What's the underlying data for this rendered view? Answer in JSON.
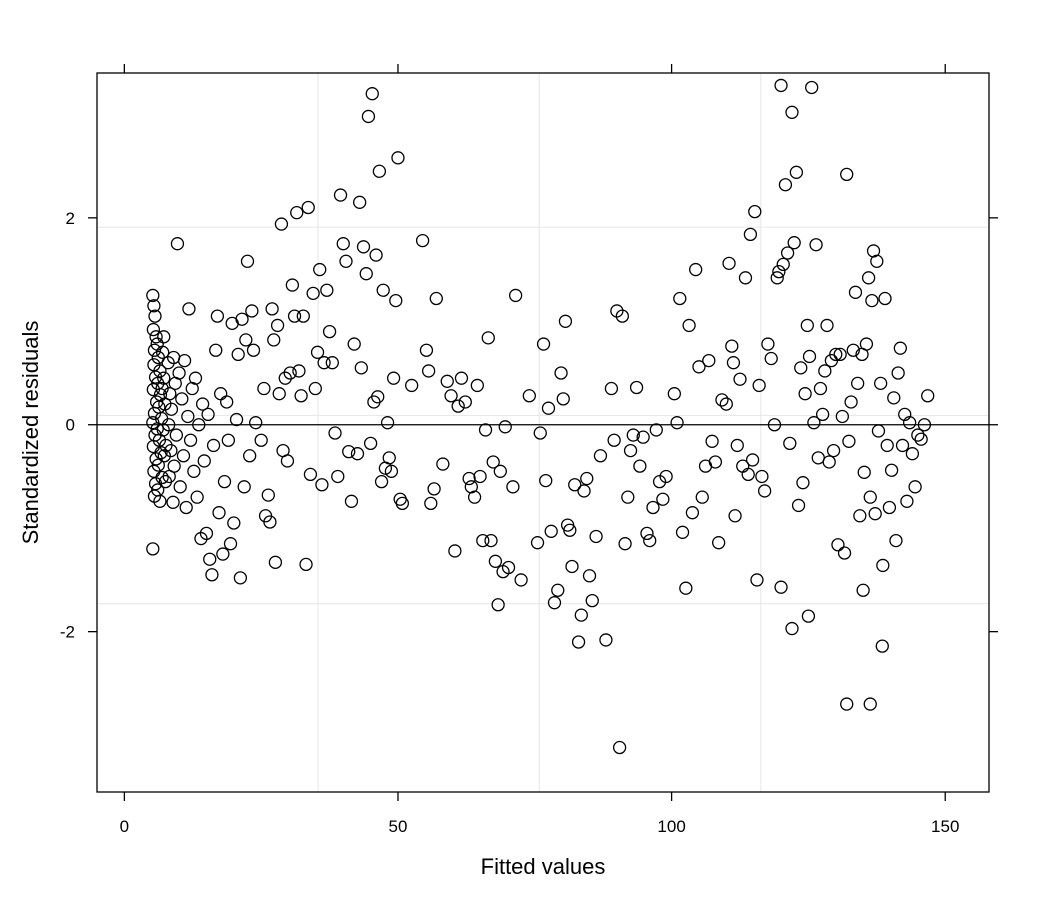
{
  "chart_data": {
    "type": "scatter",
    "xlabel": "Fitted values",
    "ylabel": "Standardized residuals",
    "xlim": [
      -5,
      158
    ],
    "ylim": [
      -3.55,
      3.4
    ],
    "x_ticks": [
      0,
      50,
      100,
      150
    ],
    "y_ticks": [
      -2,
      0,
      2
    ],
    "x_tick_labels": [
      "0",
      "50",
      "100",
      "150"
    ],
    "y_tick_labels": [
      "-2",
      "0",
      "2"
    ],
    "grid": "light gray at x=35.4, 75.8, 116.3 and y=-1.73, 0.09, 1.91",
    "grid_x": [
      35.4,
      75.8,
      116.3
    ],
    "grid_y": [
      -1.73,
      0.09,
      1.91
    ],
    "reference_line_y": 0,
    "marker": "open circle",
    "colors": {
      "points": "#000000",
      "grid": "#e6e6e6",
      "frame": "#000000",
      "reference": "#000000"
    },
    "points": [
      [
        5.2,
        1.25
      ],
      [
        5.4,
        1.15
      ],
      [
        5.6,
        1.05
      ],
      [
        5.3,
        0.92
      ],
      [
        5.8,
        0.85
      ],
      [
        6.0,
        0.78
      ],
      [
        5.5,
        0.72
      ],
      [
        6.2,
        0.65
      ],
      [
        5.4,
        0.58
      ],
      [
        6.5,
        0.52
      ],
      [
        5.7,
        0.46
      ],
      [
        6.1,
        0.4
      ],
      [
        5.3,
        0.34
      ],
      [
        6.6,
        0.29
      ],
      [
        5.9,
        0.22
      ],
      [
        6.3,
        0.17
      ],
      [
        5.5,
        0.11
      ],
      [
        6.8,
        0.06
      ],
      [
        5.2,
        0.02
      ],
      [
        6.0,
        -0.04
      ],
      [
        5.6,
        -0.1
      ],
      [
        6.4,
        -0.15
      ],
      [
        5.3,
        -0.21
      ],
      [
        6.7,
        -0.27
      ],
      [
        5.8,
        -0.33
      ],
      [
        6.2,
        -0.39
      ],
      [
        5.4,
        -0.45
      ],
      [
        6.9,
        -0.51
      ],
      [
        5.7,
        -0.57
      ],
      [
        6.1,
        -0.63
      ],
      [
        5.5,
        -0.69
      ],
      [
        6.5,
        -0.74
      ],
      [
        5.2,
        -1.2
      ],
      [
        7.0,
        0.7
      ],
      [
        7.2,
        0.45
      ],
      [
        7.4,
        0.2
      ],
      [
        7.1,
        -0.05
      ],
      [
        7.3,
        -0.3
      ],
      [
        7.5,
        -0.55
      ],
      [
        7.2,
        0.85
      ],
      [
        6.9,
        0.35
      ],
      [
        7.6,
        -0.2
      ],
      [
        8.0,
        0.6
      ],
      [
        8.3,
        0.3
      ],
      [
        8.1,
        0.0
      ],
      [
        8.5,
        -0.25
      ],
      [
        8.2,
        -0.5
      ],
      [
        8.6,
        0.15
      ],
      [
        8.9,
        -0.75
      ],
      [
        9.0,
        0.65
      ],
      [
        9.3,
        0.4
      ],
      [
        9.1,
        -0.4
      ],
      [
        9.5,
        -0.1
      ],
      [
        9.7,
        1.75
      ],
      [
        10.0,
        0.5
      ],
      [
        10.2,
        -0.6
      ],
      [
        10.5,
        0.25
      ],
      [
        10.8,
        -0.3
      ],
      [
        11.0,
        0.62
      ],
      [
        11.3,
        -0.8
      ],
      [
        11.6,
        0.08
      ],
      [
        11.8,
        1.12
      ],
      [
        12.1,
        -0.15
      ],
      [
        12.4,
        0.35
      ],
      [
        12.7,
        -0.45
      ],
      [
        13.0,
        0.45
      ],
      [
        13.3,
        -0.7
      ],
      [
        13.6,
        0.0
      ],
      [
        14.0,
        -1.1
      ],
      [
        14.3,
        0.2
      ],
      [
        14.6,
        -0.35
      ],
      [
        15.0,
        -1.05
      ],
      [
        15.3,
        0.1
      ],
      [
        15.6,
        -1.3
      ],
      [
        16.0,
        -1.45
      ],
      [
        16.3,
        -0.2
      ],
      [
        16.7,
        0.72
      ],
      [
        17.0,
        1.05
      ],
      [
        17.3,
        -0.85
      ],
      [
        17.6,
        0.3
      ],
      [
        18.0,
        -1.25
      ],
      [
        18.3,
        -0.55
      ],
      [
        18.7,
        0.22
      ],
      [
        19.0,
        -0.15
      ],
      [
        19.4,
        -1.15
      ],
      [
        19.7,
        0.98
      ],
      [
        20.0,
        -0.95
      ],
      [
        20.5,
        0.05
      ],
      [
        20.8,
        0.68
      ],
      [
        21.2,
        -1.48
      ],
      [
        21.5,
        1.02
      ],
      [
        21.9,
        -0.6
      ],
      [
        22.2,
        0.82
      ],
      [
        22.5,
        1.58
      ],
      [
        22.9,
        -0.3
      ],
      [
        23.3,
        1.1
      ],
      [
        23.6,
        0.72
      ],
      [
        24.0,
        0.02
      ],
      [
        25.0,
        -0.15
      ],
      [
        25.5,
        0.35
      ],
      [
        25.8,
        -0.88
      ],
      [
        26.3,
        -0.68
      ],
      [
        26.6,
        -0.94
      ],
      [
        27.0,
        1.12
      ],
      [
        27.3,
        0.82
      ],
      [
        27.6,
        -1.33
      ],
      [
        28.0,
        0.96
      ],
      [
        28.3,
        0.3
      ],
      [
        28.7,
        1.94
      ],
      [
        29.0,
        -0.25
      ],
      [
        29.4,
        0.45
      ],
      [
        29.8,
        -0.35
      ],
      [
        30.3,
        0.5
      ],
      [
        30.7,
        1.35
      ],
      [
        31.1,
        1.05
      ],
      [
        31.5,
        2.05
      ],
      [
        31.9,
        0.52
      ],
      [
        32.3,
        0.28
      ],
      [
        32.7,
        1.05
      ],
      [
        33.2,
        -1.35
      ],
      [
        33.6,
        2.1
      ],
      [
        34.0,
        -0.48
      ],
      [
        34.5,
        1.27
      ],
      [
        34.9,
        0.35
      ],
      [
        35.3,
        0.7
      ],
      [
        35.7,
        1.5
      ],
      [
        36.1,
        -0.58
      ],
      [
        36.5,
        0.6
      ],
      [
        37.0,
        1.3
      ],
      [
        37.5,
        0.9
      ],
      [
        38.0,
        0.6
      ],
      [
        38.5,
        -0.08
      ],
      [
        39.0,
        -0.5
      ],
      [
        39.5,
        2.22
      ],
      [
        40.0,
        1.75
      ],
      [
        40.5,
        1.58
      ],
      [
        41.0,
        -0.26
      ],
      [
        41.5,
        -0.74
      ],
      [
        42.0,
        0.78
      ],
      [
        42.6,
        -0.28
      ],
      [
        43.0,
        2.15
      ],
      [
        43.3,
        0.55
      ],
      [
        43.7,
        1.72
      ],
      [
        44.2,
        1.46
      ],
      [
        44.6,
        2.98
      ],
      [
        45.0,
        -0.18
      ],
      [
        45.3,
        3.2
      ],
      [
        45.6,
        0.22
      ],
      [
        46.0,
        1.64
      ],
      [
        46.3,
        0.27
      ],
      [
        46.6,
        2.45
      ],
      [
        47.0,
        -0.55
      ],
      [
        47.3,
        1.3
      ],
      [
        47.7,
        -0.42
      ],
      [
        48.1,
        0.02
      ],
      [
        48.4,
        -0.32
      ],
      [
        48.8,
        -0.45
      ],
      [
        49.2,
        0.45
      ],
      [
        49.6,
        1.2
      ],
      [
        50.0,
        2.58
      ],
      [
        50.4,
        -0.72
      ],
      [
        50.8,
        -0.76
      ],
      [
        52.5,
        0.38
      ],
      [
        54.5,
        1.78
      ],
      [
        55.2,
        0.72
      ],
      [
        55.6,
        0.52
      ],
      [
        56.0,
        -0.76
      ],
      [
        56.6,
        -0.62
      ],
      [
        57.0,
        1.22
      ],
      [
        58.2,
        -0.38
      ],
      [
        59.0,
        0.42
      ],
      [
        59.7,
        0.28
      ],
      [
        60.4,
        -1.22
      ],
      [
        61.0,
        0.18
      ],
      [
        61.6,
        0.45
      ],
      [
        62.3,
        0.22
      ],
      [
        63.0,
        -0.52
      ],
      [
        63.4,
        -0.6
      ],
      [
        64.0,
        -0.7
      ],
      [
        64.5,
        0.38
      ],
      [
        65.0,
        -0.5
      ],
      [
        65.5,
        -1.12
      ],
      [
        66.0,
        -0.05
      ],
      [
        66.5,
        0.84
      ],
      [
        67.0,
        -1.12
      ],
      [
        67.4,
        -0.36
      ],
      [
        67.8,
        -1.32
      ],
      [
        68.3,
        -1.74
      ],
      [
        68.7,
        -0.45
      ],
      [
        69.2,
        -1.42
      ],
      [
        69.6,
        -0.02
      ],
      [
        70.2,
        -1.38
      ],
      [
        71.0,
        -0.6
      ],
      [
        71.5,
        1.25
      ],
      [
        72.5,
        -1.5
      ],
      [
        74.0,
        0.28
      ],
      [
        75.5,
        -1.14
      ],
      [
        76.0,
        -0.08
      ],
      [
        76.6,
        0.78
      ],
      [
        77.0,
        -0.54
      ],
      [
        77.5,
        0.16
      ],
      [
        78.0,
        -1.03
      ],
      [
        78.6,
        -1.72
      ],
      [
        79.2,
        -1.6
      ],
      [
        79.8,
        0.5
      ],
      [
        80.2,
        0.25
      ],
      [
        80.6,
        1.0
      ],
      [
        81.0,
        -0.97
      ],
      [
        81.4,
        -1.02
      ],
      [
        81.8,
        -1.37
      ],
      [
        82.3,
        -0.58
      ],
      [
        83.0,
        -2.1
      ],
      [
        83.5,
        -1.84
      ],
      [
        84.0,
        -0.64
      ],
      [
        84.5,
        -0.52
      ],
      [
        85.0,
        -1.46
      ],
      [
        85.5,
        -1.7
      ],
      [
        86.2,
        -1.08
      ],
      [
        87.0,
        -0.3
      ],
      [
        88.0,
        -2.08
      ],
      [
        89.0,
        0.35
      ],
      [
        89.5,
        -0.15
      ],
      [
        90.0,
        1.1
      ],
      [
        90.5,
        -3.12
      ],
      [
        91.0,
        1.05
      ],
      [
        91.5,
        -1.15
      ],
      [
        92.0,
        -0.7
      ],
      [
        92.5,
        -0.25
      ],
      [
        93.0,
        -0.1
      ],
      [
        93.6,
        0.36
      ],
      [
        94.2,
        -0.4
      ],
      [
        94.8,
        -0.12
      ],
      [
        95.5,
        -1.05
      ],
      [
        96.0,
        -1.12
      ],
      [
        96.6,
        -0.8
      ],
      [
        97.2,
        -0.05
      ],
      [
        97.8,
        -0.55
      ],
      [
        98.4,
        -0.72
      ],
      [
        99.0,
        -0.5
      ],
      [
        100.5,
        0.3
      ],
      [
        101.0,
        0.02
      ],
      [
        101.5,
        1.22
      ],
      [
        102.0,
        -1.04
      ],
      [
        102.6,
        -1.58
      ],
      [
        103.2,
        0.96
      ],
      [
        103.8,
        -0.85
      ],
      [
        104.4,
        1.5
      ],
      [
        105.0,
        0.56
      ],
      [
        105.6,
        -0.7
      ],
      [
        106.2,
        -0.4
      ],
      [
        106.8,
        0.62
      ],
      [
        107.4,
        -0.16
      ],
      [
        108.0,
        -0.36
      ],
      [
        108.6,
        -1.14
      ],
      [
        109.2,
        0.24
      ],
      [
        110.0,
        0.2
      ],
      [
        110.5,
        1.56
      ],
      [
        111.0,
        0.76
      ],
      [
        111.3,
        0.6
      ],
      [
        111.6,
        -0.88
      ],
      [
        112.0,
        -0.2
      ],
      [
        112.5,
        0.44
      ],
      [
        113.0,
        -0.4
      ],
      [
        113.5,
        1.42
      ],
      [
        114.0,
        -0.48
      ],
      [
        114.4,
        1.84
      ],
      [
        114.8,
        -0.34
      ],
      [
        115.2,
        2.06
      ],
      [
        115.6,
        -1.5
      ],
      [
        116.0,
        0.38
      ],
      [
        116.5,
        -0.5
      ],
      [
        117.0,
        -0.64
      ],
      [
        117.6,
        0.78
      ],
      [
        118.2,
        0.64
      ],
      [
        118.8,
        0.0
      ],
      [
        119.3,
        1.42
      ],
      [
        119.6,
        1.48
      ],
      [
        120.0,
        3.28
      ],
      [
        120.4,
        1.55
      ],
      [
        120.8,
        2.32
      ],
      [
        121.2,
        1.66
      ],
      [
        121.6,
        -0.18
      ],
      [
        122.0,
        3.02
      ],
      [
        122.4,
        1.76
      ],
      [
        122.8,
        2.44
      ],
      [
        123.2,
        -0.78
      ],
      [
        123.6,
        0.55
      ],
      [
        124.0,
        -0.56
      ],
      [
        124.4,
        0.3
      ],
      [
        124.8,
        0.96
      ],
      [
        125.2,
        0.66
      ],
      [
        125.6,
        3.26
      ],
      [
        126.0,
        0.02
      ],
      [
        126.4,
        1.74
      ],
      [
        126.8,
        -0.32
      ],
      [
        127.2,
        0.35
      ],
      [
        127.6,
        0.1
      ],
      [
        128.0,
        0.52
      ],
      [
        128.4,
        0.96
      ],
      [
        128.8,
        -0.36
      ],
      [
        129.2,
        0.62
      ],
      [
        129.6,
        -0.25
      ],
      [
        130.0,
        0.68
      ],
      [
        130.4,
        -1.16
      ],
      [
        130.8,
        0.68
      ],
      [
        131.2,
        0.08
      ],
      [
        131.6,
        -1.24
      ],
      [
        132.0,
        2.42
      ],
      [
        132.4,
        -0.16
      ],
      [
        132.8,
        0.22
      ],
      [
        133.2,
        0.72
      ],
      [
        133.6,
        1.28
      ],
      [
        134.0,
        0.4
      ],
      [
        134.4,
        -0.88
      ],
      [
        134.8,
        0.68
      ],
      [
        135.2,
        -0.46
      ],
      [
        135.6,
        0.78
      ],
      [
        136.0,
        1.42
      ],
      [
        136.3,
        -0.7
      ],
      [
        136.6,
        1.2
      ],
      [
        136.9,
        1.68
      ],
      [
        137.2,
        -0.86
      ],
      [
        137.5,
        1.58
      ],
      [
        137.8,
        -0.06
      ],
      [
        138.2,
        0.4
      ],
      [
        138.6,
        -1.36
      ],
      [
        139.0,
        1.22
      ],
      [
        139.4,
        -0.2
      ],
      [
        139.8,
        -0.8
      ],
      [
        140.2,
        -0.44
      ],
      [
        140.6,
        0.26
      ],
      [
        141.0,
        -1.12
      ],
      [
        141.4,
        0.5
      ],
      [
        141.8,
        0.74
      ],
      [
        142.2,
        -0.2
      ],
      [
        142.6,
        0.1
      ],
      [
        143.0,
        -0.74
      ],
      [
        143.5,
        0.02
      ],
      [
        144.0,
        -0.28
      ],
      [
        144.5,
        -0.6
      ],
      [
        145.0,
        -0.1
      ],
      [
        145.6,
        -0.14
      ],
      [
        146.2,
        0.0
      ],
      [
        146.8,
        0.28
      ],
      [
        132.0,
        -2.7
      ],
      [
        136.3,
        -2.7
      ],
      [
        138.5,
        -2.14
      ],
      [
        122.0,
        -1.97
      ],
      [
        125.0,
        -1.85
      ],
      [
        135.0,
        -1.6
      ],
      [
        120.0,
        -1.57
      ]
    ]
  }
}
